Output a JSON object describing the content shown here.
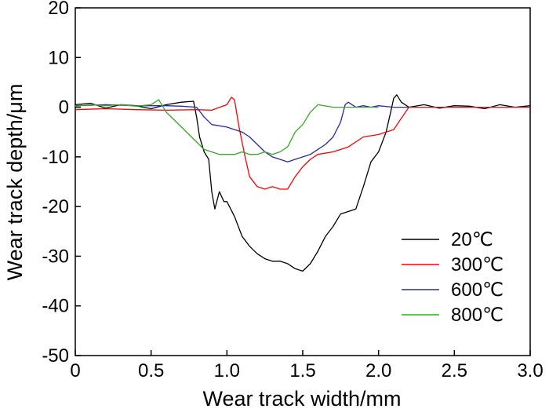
{
  "chart_data": {
    "type": "line",
    "title": "",
    "xlabel": "Wear track width/mm",
    "ylabel": "Wear track depth/μm",
    "xlim": [
      0,
      3.0
    ],
    "ylim": [
      -50,
      20
    ],
    "xticks": [
      "0",
      "0.5",
      "1.0",
      "1.5",
      "2.0",
      "2.5",
      "3.0"
    ],
    "xtick_values": [
      0,
      0.5,
      1.0,
      1.5,
      2.0,
      2.5,
      3.0
    ],
    "yticks": [
      "20",
      "10",
      "0",
      "-10",
      "-20",
      "-30",
      "-40",
      "-50"
    ],
    "ytick_values": [
      20,
      10,
      0,
      -10,
      -20,
      -30,
      -40,
      -50
    ],
    "grid": false,
    "legend_position": "bottom-right",
    "series": [
      {
        "name": "20℃",
        "color": "#000000",
        "x": [
          0.0,
          0.1,
          0.2,
          0.3,
          0.4,
          0.5,
          0.6,
          0.7,
          0.78,
          0.8,
          0.82,
          0.85,
          0.88,
          0.9,
          0.92,
          0.95,
          0.98,
          1.0,
          1.05,
          1.1,
          1.15,
          1.2,
          1.25,
          1.3,
          1.35,
          1.4,
          1.45,
          1.5,
          1.55,
          1.6,
          1.65,
          1.7,
          1.75,
          1.8,
          1.85,
          1.9,
          1.95,
          2.0,
          2.05,
          2.08,
          2.1,
          2.12,
          2.15,
          2.2,
          2.3,
          2.4,
          2.5,
          2.6,
          2.7,
          2.8,
          2.9,
          3.0
        ],
        "y": [
          0.5,
          0.8,
          -0.2,
          0.5,
          0.3,
          -0.3,
          0.5,
          1.0,
          1.2,
          -2.0,
          -6.0,
          -9.0,
          -10.5,
          -17.0,
          -20.5,
          -17.0,
          -19.0,
          -19.0,
          -22.0,
          -26.0,
          -28.0,
          -29.5,
          -30.5,
          -31.0,
          -31.0,
          -31.5,
          -32.5,
          -33.0,
          -31.5,
          -29.0,
          -26.0,
          -24.0,
          -21.5,
          -21.0,
          -20.5,
          -16.0,
          -11.0,
          -9.0,
          -5.0,
          -1.0,
          1.8,
          2.5,
          1.0,
          0.0,
          0.5,
          -0.2,
          0.3,
          0.2,
          -0.3,
          0.5,
          0.0,
          0.3
        ]
      },
      {
        "name": "300℃",
        "color": "#ff0000",
        "x": [
          0.0,
          0.2,
          0.4,
          0.6,
          0.8,
          0.9,
          1.0,
          1.03,
          1.05,
          1.08,
          1.12,
          1.15,
          1.2,
          1.25,
          1.3,
          1.35,
          1.4,
          1.45,
          1.5,
          1.55,
          1.6,
          1.7,
          1.8,
          1.9,
          2.0,
          2.1,
          2.2,
          2.25,
          2.3,
          2.5,
          2.7,
          3.0
        ],
        "y": [
          -0.5,
          -0.3,
          -0.5,
          -0.6,
          -0.5,
          -0.6,
          0.5,
          2.0,
          1.5,
          -4.0,
          -10.0,
          -14.0,
          -16.0,
          -16.5,
          -16.0,
          -16.5,
          -16.5,
          -14.0,
          -12.0,
          -10.5,
          -9.5,
          -9.0,
          -8.0,
          -6.0,
          -5.5,
          -4.5,
          0.0,
          0.0,
          0.0,
          0.0,
          0.0,
          0.0
        ]
      },
      {
        "name": "600℃",
        "color": "#2a2aa0",
        "x": [
          0.0,
          0.2,
          0.4,
          0.6,
          0.7,
          0.8,
          0.85,
          0.9,
          1.0,
          1.05,
          1.1,
          1.15,
          1.2,
          1.25,
          1.3,
          1.35,
          1.4,
          1.45,
          1.5,
          1.55,
          1.6,
          1.65,
          1.7,
          1.75,
          1.78,
          1.8,
          1.85,
          1.9,
          1.95,
          2.0,
          2.1,
          2.2
        ],
        "y": [
          0.3,
          0.5,
          0.3,
          0.3,
          0.2,
          0.0,
          -2.0,
          -3.5,
          -4.0,
          -4.5,
          -5.0,
          -6.0,
          -7.5,
          -9.0,
          -10.0,
          -10.5,
          -11.0,
          -10.5,
          -10.0,
          -9.5,
          -8.5,
          -7.5,
          -6.0,
          -3.0,
          0.5,
          1.0,
          0.0,
          0.3,
          0.0,
          0.3,
          0.0,
          0.0
        ]
      },
      {
        "name": "800℃",
        "color": "#33aa22",
        "x": [
          0.0,
          0.1,
          0.2,
          0.3,
          0.4,
          0.5,
          0.55,
          0.6,
          0.7,
          0.75,
          0.8,
          0.85,
          0.9,
          0.95,
          1.0,
          1.05,
          1.1,
          1.15,
          1.2,
          1.25,
          1.3,
          1.35,
          1.4,
          1.45,
          1.5,
          1.55,
          1.6,
          1.7,
          1.8,
          1.9,
          2.0
        ],
        "y": [
          0.2,
          0.5,
          0.3,
          0.5,
          0.2,
          0.5,
          1.5,
          -1.0,
          -4.0,
          -5.5,
          -7.0,
          -8.5,
          -9.0,
          -9.5,
          -9.5,
          -9.5,
          -9.0,
          -9.5,
          -9.5,
          -9.0,
          -9.5,
          -9.0,
          -8.0,
          -5.0,
          -3.5,
          -1.0,
          0.5,
          0.0,
          0.0,
          0.0,
          0.0
        ]
      }
    ]
  }
}
